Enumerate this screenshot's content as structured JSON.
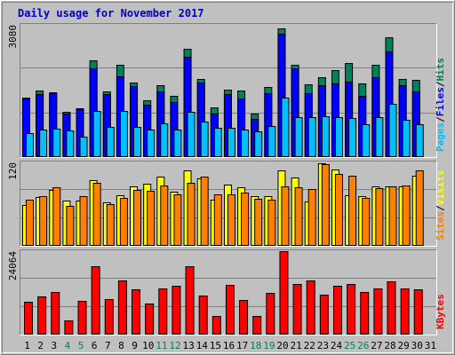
{
  "title": "Daily usage for November 2017",
  "colors": {
    "hits": "#00805C",
    "files": "#0000FF",
    "pages": "#00C0FF",
    "visits": "#FFFF00",
    "sites": "#FF8000",
    "kbytes": "#FF0000",
    "weekend_label": "#00805C",
    "weekday_label": "#000000",
    "title": "#0000C0"
  },
  "right_labels": {
    "top": [
      {
        "text": "Pages",
        "color": "#00C0FF"
      },
      {
        "text": "/",
        "color": "#000000"
      },
      {
        "text": "Files",
        "color": "#0000FF"
      },
      {
        "text": "/",
        "color": "#000000"
      },
      {
        "text": "Hits",
        "color": "#00805C"
      }
    ],
    "mid": [
      {
        "text": "Sites",
        "color": "#FF8000"
      },
      {
        "text": "/",
        "color": "#000000"
      },
      {
        "text": "Visits",
        "color": "#FFFF00"
      }
    ],
    "bottom": [
      {
        "text": "KBytes",
        "color": "#FF0000"
      }
    ]
  },
  "chart_data": [
    {
      "type": "bar",
      "title": "Daily usage for November 2017",
      "categories": [
        "1",
        "2",
        "3",
        "4",
        "5",
        "6",
        "7",
        "8",
        "9",
        "10",
        "11",
        "12",
        "13",
        "14",
        "15",
        "16",
        "17",
        "18",
        "19",
        "20",
        "21",
        "22",
        "23",
        "24",
        "25",
        "26",
        "27",
        "28",
        "29",
        "30",
        "31"
      ],
      "weekend_days": [
        "4",
        "5",
        "11",
        "12",
        "18",
        "19",
        "25",
        "26"
      ],
      "ylim": [
        0,
        3080
      ],
      "ymax_label": "3080",
      "series": [
        {
          "name": "Hits",
          "values": [
            1390,
            1540,
            1500,
            1060,
            1130,
            2260,
            1520,
            2140,
            1730,
            1330,
            1680,
            1420,
            2520,
            1820,
            1150,
            1570,
            1550,
            1010,
            1640,
            3000,
            2150,
            1690,
            1860,
            2020,
            2200,
            1720,
            2150,
            2790,
            1810,
            1800,
            0
          ]
        },
        {
          "name": "Files",
          "values": [
            1370,
            1470,
            1490,
            1010,
            1110,
            2070,
            1460,
            1890,
            1650,
            1220,
            1530,
            1280,
            2330,
            1730,
            1020,
            1470,
            1360,
            880,
            1490,
            2880,
            2070,
            1490,
            1680,
            1720,
            1760,
            1420,
            1860,
            2470,
            1680,
            1520,
            0
          ]
        },
        {
          "name": "Pages",
          "values": [
            560,
            650,
            660,
            620,
            480,
            1070,
            710,
            1070,
            700,
            650,
            790,
            640,
            1060,
            830,
            690,
            690,
            650,
            600,
            730,
            1390,
            920,
            920,
            960,
            940,
            910,
            760,
            940,
            1250,
            860,
            760,
            0
          ]
        }
      ]
    },
    {
      "type": "bar",
      "categories": [
        "1",
        "2",
        "3",
        "4",
        "5",
        "6",
        "7",
        "8",
        "9",
        "10",
        "11",
        "12",
        "13",
        "14",
        "15",
        "16",
        "17",
        "18",
        "19",
        "20",
        "21",
        "22",
        "23",
        "24",
        "25",
        "26",
        "27",
        "28",
        "29",
        "30",
        "31"
      ],
      "ylim": [
        0,
        120
      ],
      "ymax_label": "120",
      "series": [
        {
          "name": "Visits",
          "values": [
            59,
            70,
            80,
            65,
            65,
            95,
            63,
            73,
            86,
            89,
            99,
            78,
            109,
            97,
            66,
            88,
            84,
            72,
            72,
            109,
            98,
            64,
            119,
            110,
            73,
            72,
            86,
            85,
            86,
            101,
            0
          ]
        },
        {
          "name": "Sites",
          "values": [
            66,
            72,
            84,
            58,
            71,
            91,
            60,
            69,
            80,
            79,
            87,
            74,
            91,
            100,
            74,
            74,
            77,
            68,
            66,
            85,
            84,
            82,
            118,
            104,
            101,
            69,
            83,
            86,
            87,
            109,
            0
          ]
        }
      ]
    },
    {
      "type": "bar",
      "categories": [
        "1",
        "2",
        "3",
        "4",
        "5",
        "6",
        "7",
        "8",
        "9",
        "10",
        "11",
        "12",
        "13",
        "14",
        "15",
        "16",
        "17",
        "18",
        "19",
        "20",
        "21",
        "22",
        "23",
        "24",
        "25",
        "26",
        "27",
        "28",
        "29",
        "30",
        "31"
      ],
      "ylim": [
        0,
        24064
      ],
      "ymax_label": "24064",
      "series": [
        {
          "name": "KBytes",
          "values": [
            9400,
            11000,
            12200,
            4200,
            9600,
            19700,
            10300,
            15500,
            13100,
            9000,
            13300,
            14100,
            19700,
            11300,
            5400,
            14400,
            10000,
            5500,
            12000,
            24064,
            14500,
            15700,
            11500,
            14200,
            14600,
            12300,
            13300,
            15400,
            13400,
            13100,
            0
          ]
        }
      ]
    }
  ]
}
